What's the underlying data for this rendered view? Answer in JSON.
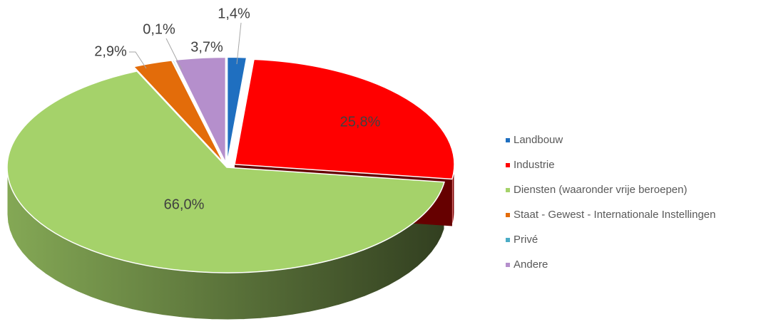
{
  "chart_data": {
    "type": "pie3d",
    "categories": [
      "Landbouw",
      "Industrie",
      "Diensten (waaronder vrije beroepen)",
      "Staat - Gewest - Internationale Instellingen",
      "Privé",
      "Andere"
    ],
    "values": [
      1.4,
      25.8,
      66.0,
      2.9,
      0.1,
      3.7
    ],
    "value_labels": [
      "1,4%",
      "25,8%",
      "66,0%",
      "2,9%",
      "0,1%",
      "3,7%"
    ],
    "colors": [
      "#1f6fc0",
      "#ff0000",
      "#a5d26a",
      "#e36c0a",
      "#4bacc6",
      "#b58fcc"
    ],
    "legend": "right"
  }
}
